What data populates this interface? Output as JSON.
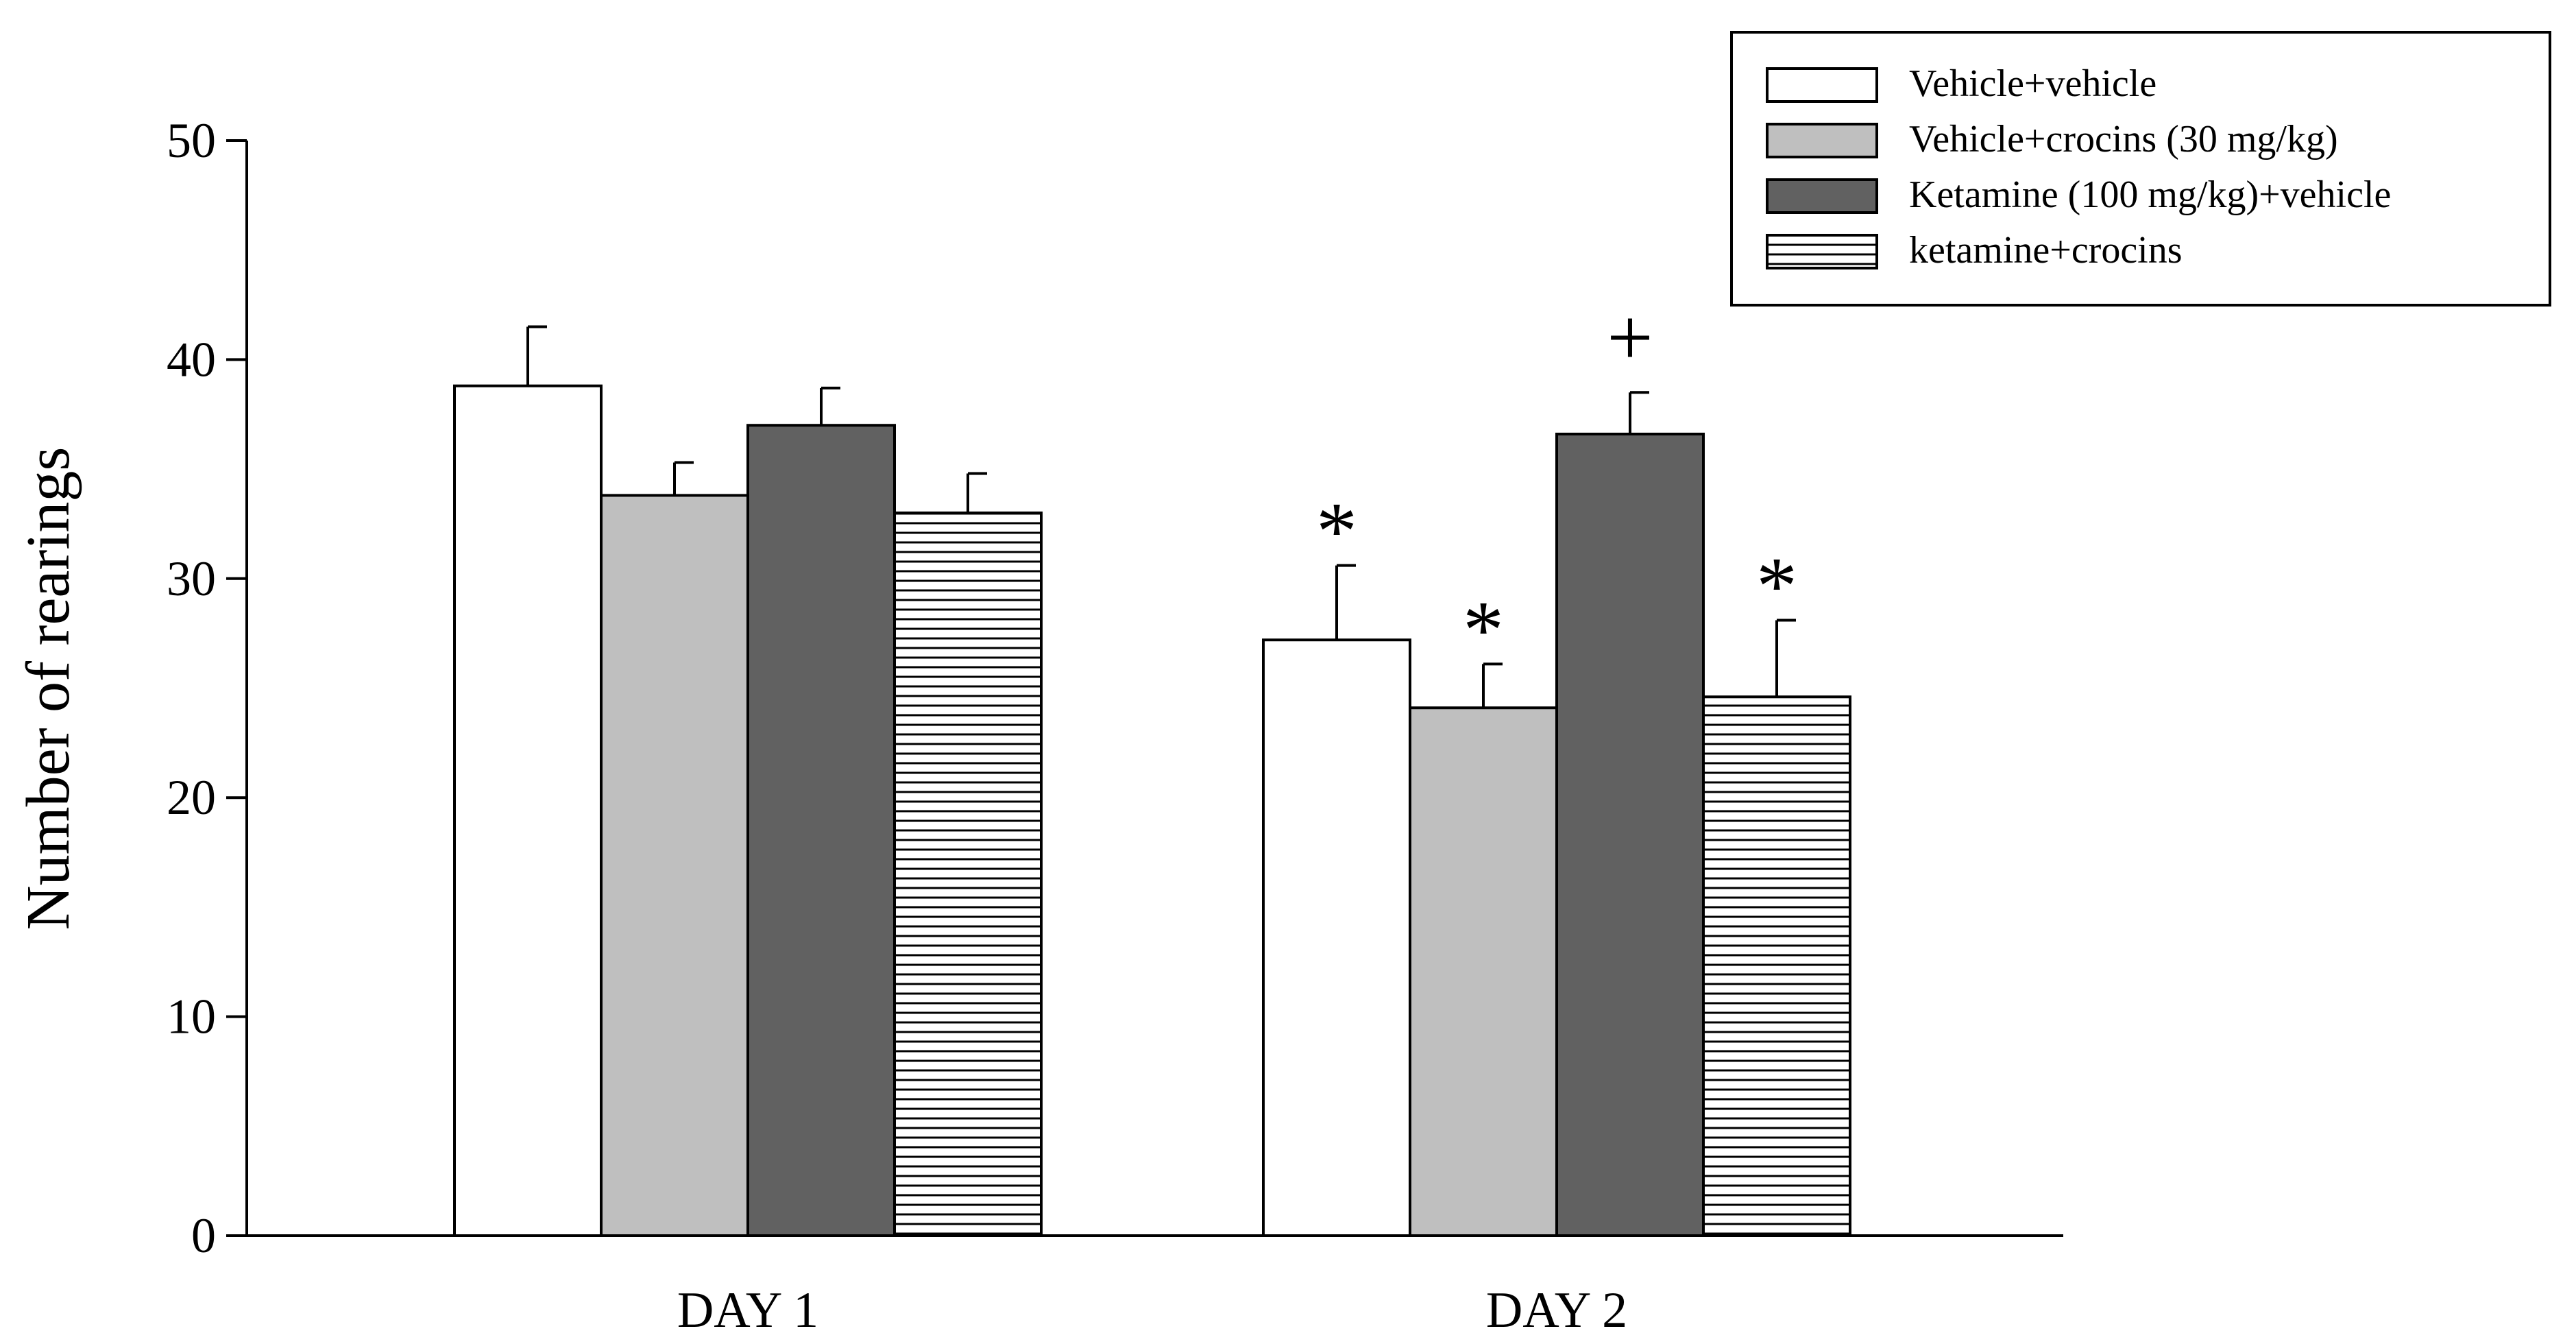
{
  "chart_data": {
    "type": "bar",
    "title": "",
    "xlabel": "",
    "ylabel": "Number of rearings",
    "ylim": [
      0,
      50
    ],
    "yticks": [
      0,
      10,
      20,
      30,
      40,
      50
    ],
    "categories": [
      "DAY 1",
      "DAY 2"
    ],
    "legend_position": "top-right",
    "series": [
      {
        "name": "Vehicle+vehicle",
        "fill": "#ffffff",
        "pattern": "none",
        "values": [
          38.8,
          27.2
        ],
        "errors": [
          2.7,
          3.4
        ],
        "markers": [
          "",
          "*"
        ]
      },
      {
        "name": "Vehicle+crocins (30 mg/kg)",
        "fill": "#bfbfbf",
        "pattern": "none",
        "values": [
          33.8,
          24.1
        ],
        "errors": [
          1.5,
          2.0
        ],
        "markers": [
          "",
          "*"
        ]
      },
      {
        "name": "Ketamine (100 mg/kg)+vehicle",
        "fill": "#616161",
        "pattern": "none",
        "values": [
          37.0,
          36.6
        ],
        "errors": [
          1.7,
          1.9
        ],
        "markers": [
          "",
          "+"
        ]
      },
      {
        "name": "ketamine+crocins",
        "fill": "#ffffff",
        "pattern": "horizontal-lines",
        "values": [
          33.0,
          24.6
        ],
        "errors": [
          1.8,
          3.5
        ],
        "markers": [
          "",
          "*"
        ]
      }
    ]
  }
}
